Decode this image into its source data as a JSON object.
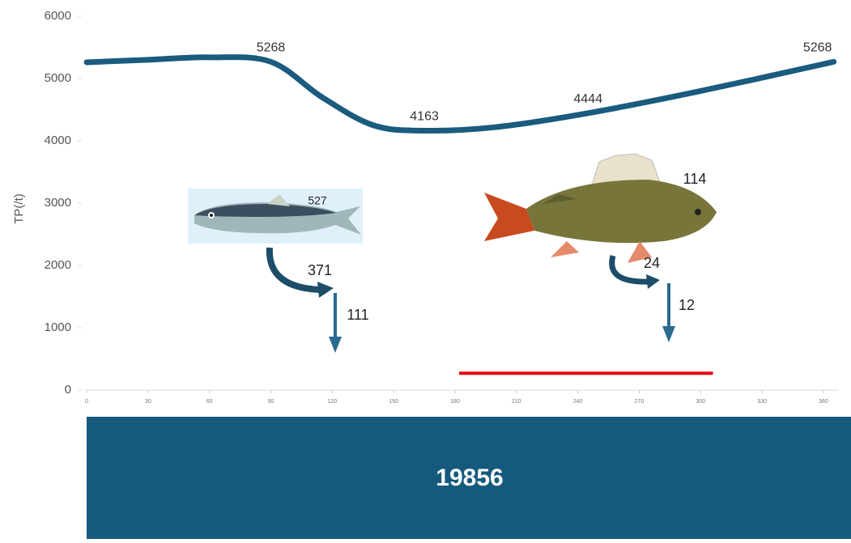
{
  "chart_data": {
    "type": "line",
    "y_label": "TP(/t)",
    "xlim": [
      0,
      365
    ],
    "xticks": [
      0,
      30,
      60,
      90,
      120,
      150,
      180,
      210,
      240,
      270,
      300,
      330,
      360
    ],
    "ylim": [
      0,
      6000
    ],
    "yticks": [
      0,
      1000,
      2000,
      3000,
      4000,
      5000,
      6000
    ],
    "series": [
      {
        "color": "#1a5b7e",
        "x": [
          0,
          30,
          60,
          90,
          115,
          140,
          165,
          200,
          245,
          300,
          365
        ],
        "values": [
          5260,
          5300,
          5340,
          5268,
          4700,
          4250,
          4163,
          4220,
          4444,
          4800,
          5268
        ],
        "value_labels": [
          null,
          null,
          null,
          "5268",
          null,
          null,
          "4163",
          null,
          "4444",
          null,
          "5268"
        ]
      }
    ],
    "reference_line": {
      "x": [
        182,
        306
      ],
      "values": [
        270,
        270
      ],
      "color": "#e8000b"
    },
    "annotations": {
      "herring": {
        "stock": "527",
        "recycled": "371",
        "exported": "111"
      },
      "perch": {
        "stock": "114",
        "recycled": "24",
        "exported": "12"
      },
      "sediment": "19856"
    }
  }
}
